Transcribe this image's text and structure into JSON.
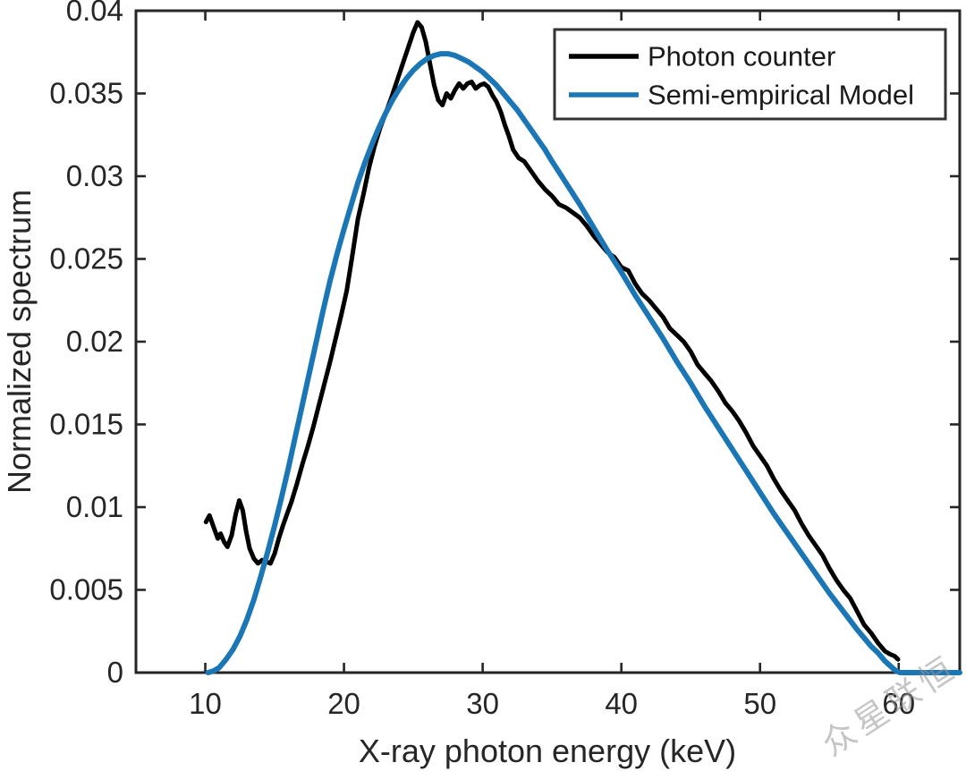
{
  "figure": {
    "watermark": "众星联恒",
    "background": "#ffffff"
  },
  "chart_data": {
    "type": "line",
    "title": "",
    "xlabel": "X-ray photon energy (keV)",
    "ylabel": "Normalized spectrum",
    "xlim": [
      5,
      64.4
    ],
    "ylim": [
      0,
      0.04
    ],
    "xticks": [
      10,
      20,
      30,
      40,
      50,
      60
    ],
    "xtick_labels": [
      "10",
      "20",
      "30",
      "40",
      "50",
      "60"
    ],
    "yticks": [
      0,
      0.005,
      0.01,
      0.015,
      0.02,
      0.025,
      0.03,
      0.035,
      0.04
    ],
    "ytick_labels": [
      "0",
      "0.005",
      "0.01",
      "0.015",
      "0.02",
      "0.025",
      "0.03",
      "0.035",
      "0.04"
    ],
    "grid": false,
    "box": true,
    "axis_color": "#262626",
    "legend": {
      "position": "top-right",
      "entries": [
        "Photon counter",
        "Semi-empirical Model"
      ]
    },
    "series": [
      {
        "name": "Photon counter",
        "color": "#000000",
        "line_width": 5,
        "points": [
          [
            10.05,
            0.0091
          ],
          [
            10.3,
            0.0095
          ],
          [
            10.6,
            0.0088
          ],
          [
            10.9,
            0.0081
          ],
          [
            11.1,
            0.0084
          ],
          [
            11.35,
            0.0079
          ],
          [
            11.6,
            0.0076
          ],
          [
            11.9,
            0.0083
          ],
          [
            12.2,
            0.0096
          ],
          [
            12.45,
            0.0104
          ],
          [
            12.7,
            0.0098
          ],
          [
            12.95,
            0.0085
          ],
          [
            13.2,
            0.0075
          ],
          [
            13.5,
            0.0069
          ],
          [
            13.8,
            0.0066
          ],
          [
            14.1,
            0.0068
          ],
          [
            14.4,
            0.0067
          ],
          [
            14.7,
            0.0066
          ],
          [
            15.0,
            0.0072
          ],
          [
            15.3,
            0.0081
          ],
          [
            15.6,
            0.0089
          ],
          [
            15.9,
            0.0096
          ],
          [
            16.2,
            0.0103
          ],
          [
            16.6,
            0.0114
          ],
          [
            17.0,
            0.0126
          ],
          [
            17.4,
            0.0137
          ],
          [
            17.8,
            0.0149
          ],
          [
            18.2,
            0.0162
          ],
          [
            18.6,
            0.0175
          ],
          [
            19.0,
            0.0188
          ],
          [
            19.4,
            0.0202
          ],
          [
            19.8,
            0.0216
          ],
          [
            20.2,
            0.0231
          ],
          [
            20.6,
            0.0252
          ],
          [
            21.0,
            0.0274
          ],
          [
            21.4,
            0.0289
          ],
          [
            21.8,
            0.0305
          ],
          [
            22.2,
            0.0318
          ],
          [
            22.6,
            0.0329
          ],
          [
            23.0,
            0.0338
          ],
          [
            23.4,
            0.0347
          ],
          [
            23.8,
            0.0357
          ],
          [
            24.2,
            0.0367
          ],
          [
            24.6,
            0.0377
          ],
          [
            25.0,
            0.0387
          ],
          [
            25.3,
            0.0393
          ],
          [
            25.6,
            0.039
          ],
          [
            25.9,
            0.0381
          ],
          [
            26.2,
            0.0368
          ],
          [
            26.5,
            0.0355
          ],
          [
            26.8,
            0.0346
          ],
          [
            27.1,
            0.0343
          ],
          [
            27.4,
            0.035
          ],
          [
            27.7,
            0.0347
          ],
          [
            28.0,
            0.0352
          ],
          [
            28.3,
            0.0356
          ],
          [
            28.6,
            0.0353
          ],
          [
            28.9,
            0.0356
          ],
          [
            29.2,
            0.0357
          ],
          [
            29.5,
            0.0353
          ],
          [
            29.8,
            0.0355
          ],
          [
            30.1,
            0.0356
          ],
          [
            30.4,
            0.0354
          ],
          [
            30.7,
            0.0349
          ],
          [
            31.0,
            0.0345
          ],
          [
            31.3,
            0.0339
          ],
          [
            31.6,
            0.0331
          ],
          [
            31.9,
            0.0324
          ],
          [
            32.2,
            0.0316
          ],
          [
            32.6,
            0.0311
          ],
          [
            33.0,
            0.0309
          ],
          [
            33.5,
            0.0303
          ],
          [
            34.0,
            0.0297
          ],
          [
            34.5,
            0.0292
          ],
          [
            35.0,
            0.0288
          ],
          [
            35.5,
            0.0283
          ],
          [
            36.0,
            0.0281
          ],
          [
            36.5,
            0.0278
          ],
          [
            37.0,
            0.0275
          ],
          [
            37.5,
            0.027
          ],
          [
            38.0,
            0.0264
          ],
          [
            38.5,
            0.0259
          ],
          [
            39.0,
            0.0254
          ],
          [
            39.5,
            0.0251
          ],
          [
            40.0,
            0.0245
          ],
          [
            40.5,
            0.0243
          ],
          [
            41.0,
            0.0235
          ],
          [
            41.5,
            0.0229
          ],
          [
            42.0,
            0.0225
          ],
          [
            42.5,
            0.022
          ],
          [
            43.0,
            0.0215
          ],
          [
            43.5,
            0.0208
          ],
          [
            44.0,
            0.0204
          ],
          [
            44.5,
            0.02
          ],
          [
            45.0,
            0.0194
          ],
          [
            45.5,
            0.0186
          ],
          [
            46.0,
            0.0181
          ],
          [
            46.5,
            0.0176
          ],
          [
            47.0,
            0.017
          ],
          [
            47.5,
            0.0163
          ],
          [
            48.0,
            0.0158
          ],
          [
            48.5,
            0.0152
          ],
          [
            49.0,
            0.0145
          ],
          [
            49.5,
            0.0137
          ],
          [
            50.0,
            0.0131
          ],
          [
            50.5,
            0.0125
          ],
          [
            51.0,
            0.0117
          ],
          [
            51.5,
            0.011
          ],
          [
            52.0,
            0.0104
          ],
          [
            52.5,
            0.0098
          ],
          [
            53.0,
            0.009
          ],
          [
            53.5,
            0.0083
          ],
          [
            54.0,
            0.0077
          ],
          [
            54.5,
            0.0071
          ],
          [
            55.0,
            0.0063
          ],
          [
            55.5,
            0.0056
          ],
          [
            56.0,
            0.005
          ],
          [
            56.5,
            0.0045
          ],
          [
            57.0,
            0.0037
          ],
          [
            57.5,
            0.0029
          ],
          [
            58.0,
            0.0024
          ],
          [
            58.5,
            0.0018
          ],
          [
            59.0,
            0.0013
          ],
          [
            59.4,
            0.0011
          ],
          [
            59.7,
            0.001
          ],
          [
            59.95,
            0.0008
          ]
        ]
      },
      {
        "name": "Semi-empirical Model",
        "color": "#1b76b6",
        "line_width": 6,
        "points": [
          [
            10.2,
            0
          ],
          [
            10.6,
            0.0001
          ],
          [
            11,
            0.0003
          ],
          [
            11.5,
            0.0008
          ],
          [
            12,
            0.0014
          ],
          [
            12.5,
            0.0022
          ],
          [
            13,
            0.0032
          ],
          [
            13.5,
            0.0044
          ],
          [
            14,
            0.0058
          ],
          [
            14.5,
            0.0073
          ],
          [
            15,
            0.0089
          ],
          [
            15.5,
            0.0106
          ],
          [
            16,
            0.0124
          ],
          [
            16.5,
            0.0143
          ],
          [
            17,
            0.0162
          ],
          [
            17.5,
            0.0181
          ],
          [
            18,
            0.02
          ],
          [
            18.5,
            0.0219
          ],
          [
            19,
            0.0237
          ],
          [
            19.5,
            0.0253
          ],
          [
            20,
            0.0268
          ],
          [
            20.5,
            0.0282
          ],
          [
            21,
            0.0296
          ],
          [
            21.5,
            0.0308
          ],
          [
            22,
            0.0319
          ],
          [
            22.5,
            0.0329
          ],
          [
            23,
            0.0338
          ],
          [
            23.5,
            0.0346
          ],
          [
            24,
            0.0353
          ],
          [
            24.5,
            0.0359
          ],
          [
            25,
            0.0364
          ],
          [
            25.5,
            0.0368
          ],
          [
            26,
            0.0371
          ],
          [
            26.5,
            0.0373
          ],
          [
            27,
            0.0374
          ],
          [
            27.5,
            0.0374
          ],
          [
            28,
            0.0373
          ],
          [
            28.5,
            0.0371
          ],
          [
            29,
            0.0369
          ],
          [
            29.5,
            0.0366
          ],
          [
            30,
            0.0363
          ],
          [
            30.5,
            0.0359
          ],
          [
            31,
            0.0355
          ],
          [
            31.5,
            0.035
          ],
          [
            32,
            0.0345
          ],
          [
            32.5,
            0.034
          ],
          [
            33,
            0.0334
          ],
          [
            33.5,
            0.0328
          ],
          [
            34,
            0.0322
          ],
          [
            34.5,
            0.0316
          ],
          [
            35,
            0.0309
          ],
          [
            36,
            0.0296
          ],
          [
            37,
            0.0283
          ],
          [
            38,
            0.0269
          ],
          [
            39,
            0.0255
          ],
          [
            40,
            0.0242
          ],
          [
            41,
            0.0228
          ],
          [
            42,
            0.0215
          ],
          [
            43,
            0.0202
          ],
          [
            44,
            0.0188
          ],
          [
            45,
            0.0175
          ],
          [
            46,
            0.0161
          ],
          [
            47,
            0.0148
          ],
          [
            48,
            0.0135
          ],
          [
            49,
            0.0122
          ],
          [
            50,
            0.0109
          ],
          [
            51,
            0.0096
          ],
          [
            52,
            0.0084
          ],
          [
            53,
            0.0072
          ],
          [
            54,
            0.006
          ],
          [
            55,
            0.0048
          ],
          [
            56,
            0.0037
          ],
          [
            57,
            0.0026
          ],
          [
            58,
            0.0016
          ],
          [
            58.5,
            0.0012
          ],
          [
            59,
            0.0007
          ],
          [
            59.4,
            0.0004
          ],
          [
            59.8,
            0.0001
          ],
          [
            60.1,
            0
          ],
          [
            64.4,
            0
          ]
        ]
      }
    ]
  }
}
